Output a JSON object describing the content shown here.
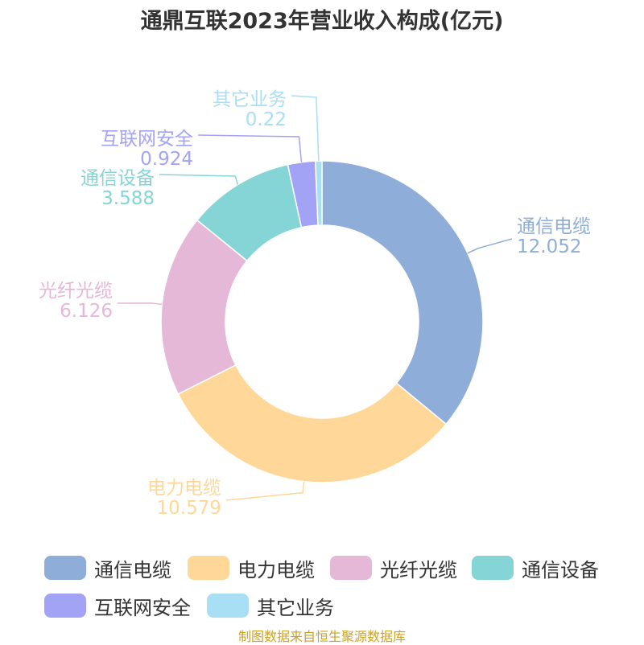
{
  "chart_data": {
    "type": "pie",
    "title": "通鼎互联2023年营业收入构成(亿元)",
    "categories": [
      "通信电缆",
      "电力电缆",
      "光纤光缆",
      "通信设备",
      "互联网安全",
      "其它业务"
    ],
    "values": [
      12.052,
      10.579,
      6.126,
      3.588,
      0.924,
      0.22
    ],
    "value_labels": [
      "12.052",
      "10.579",
      "6.126",
      "3.588",
      "0.924",
      "0.22"
    ],
    "colors": [
      "#8eadd8",
      "#ffd899",
      "#e6b8d7",
      "#86d5d6",
      "#a3a3f5",
      "#a8dff5"
    ],
    "donut": true,
    "legend": "bottom"
  },
  "source": "制图数据来自恒生聚源数据库"
}
